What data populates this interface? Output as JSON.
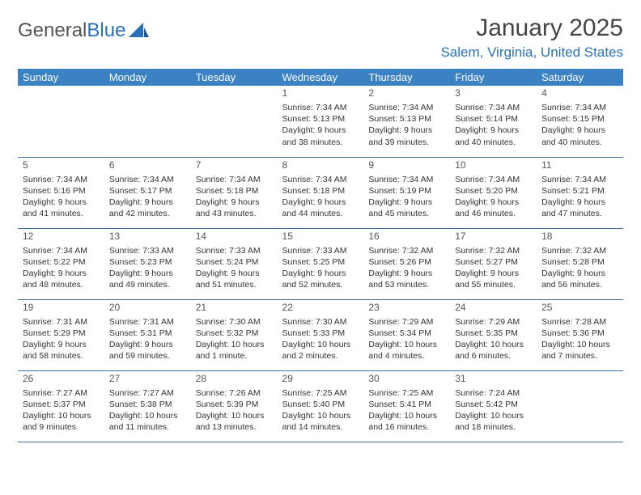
{
  "brand": {
    "part1": "General",
    "part2": "Blue"
  },
  "title": "January 2025",
  "location": "Salem, Virginia, United States",
  "colors": {
    "header_bg": "#3b82c4",
    "header_text": "#ffffff",
    "daynum_bg": "#eceden",
    "border": "#3b6fa3",
    "brand_blue": "#2a71b8",
    "text": "#333333",
    "page_bg": "#ffffff"
  },
  "weekdays": [
    "Sunday",
    "Monday",
    "Tuesday",
    "Wednesday",
    "Thursday",
    "Friday",
    "Saturday"
  ],
  "weeks": [
    [
      {
        "n": "",
        "t": ""
      },
      {
        "n": "",
        "t": ""
      },
      {
        "n": "",
        "t": ""
      },
      {
        "n": "1",
        "t": "Sunrise: 7:34 AM\nSunset: 5:13 PM\nDaylight: 9 hours and 38 minutes."
      },
      {
        "n": "2",
        "t": "Sunrise: 7:34 AM\nSunset: 5:13 PM\nDaylight: 9 hours and 39 minutes."
      },
      {
        "n": "3",
        "t": "Sunrise: 7:34 AM\nSunset: 5:14 PM\nDaylight: 9 hours and 40 minutes."
      },
      {
        "n": "4",
        "t": "Sunrise: 7:34 AM\nSunset: 5:15 PM\nDaylight: 9 hours and 40 minutes."
      }
    ],
    [
      {
        "n": "5",
        "t": "Sunrise: 7:34 AM\nSunset: 5:16 PM\nDaylight: 9 hours and 41 minutes."
      },
      {
        "n": "6",
        "t": "Sunrise: 7:34 AM\nSunset: 5:17 PM\nDaylight: 9 hours and 42 minutes."
      },
      {
        "n": "7",
        "t": "Sunrise: 7:34 AM\nSunset: 5:18 PM\nDaylight: 9 hours and 43 minutes."
      },
      {
        "n": "8",
        "t": "Sunrise: 7:34 AM\nSunset: 5:18 PM\nDaylight: 9 hours and 44 minutes."
      },
      {
        "n": "9",
        "t": "Sunrise: 7:34 AM\nSunset: 5:19 PM\nDaylight: 9 hours and 45 minutes."
      },
      {
        "n": "10",
        "t": "Sunrise: 7:34 AM\nSunset: 5:20 PM\nDaylight: 9 hours and 46 minutes."
      },
      {
        "n": "11",
        "t": "Sunrise: 7:34 AM\nSunset: 5:21 PM\nDaylight: 9 hours and 47 minutes."
      }
    ],
    [
      {
        "n": "12",
        "t": "Sunrise: 7:34 AM\nSunset: 5:22 PM\nDaylight: 9 hours and 48 minutes."
      },
      {
        "n": "13",
        "t": "Sunrise: 7:33 AM\nSunset: 5:23 PM\nDaylight: 9 hours and 49 minutes."
      },
      {
        "n": "14",
        "t": "Sunrise: 7:33 AM\nSunset: 5:24 PM\nDaylight: 9 hours and 51 minutes."
      },
      {
        "n": "15",
        "t": "Sunrise: 7:33 AM\nSunset: 5:25 PM\nDaylight: 9 hours and 52 minutes."
      },
      {
        "n": "16",
        "t": "Sunrise: 7:32 AM\nSunset: 5:26 PM\nDaylight: 9 hours and 53 minutes."
      },
      {
        "n": "17",
        "t": "Sunrise: 7:32 AM\nSunset: 5:27 PM\nDaylight: 9 hours and 55 minutes."
      },
      {
        "n": "18",
        "t": "Sunrise: 7:32 AM\nSunset: 5:28 PM\nDaylight: 9 hours and 56 minutes."
      }
    ],
    [
      {
        "n": "19",
        "t": "Sunrise: 7:31 AM\nSunset: 5:29 PM\nDaylight: 9 hours and 58 minutes."
      },
      {
        "n": "20",
        "t": "Sunrise: 7:31 AM\nSunset: 5:31 PM\nDaylight: 9 hours and 59 minutes."
      },
      {
        "n": "21",
        "t": "Sunrise: 7:30 AM\nSunset: 5:32 PM\nDaylight: 10 hours and 1 minute."
      },
      {
        "n": "22",
        "t": "Sunrise: 7:30 AM\nSunset: 5:33 PM\nDaylight: 10 hours and 2 minutes."
      },
      {
        "n": "23",
        "t": "Sunrise: 7:29 AM\nSunset: 5:34 PM\nDaylight: 10 hours and 4 minutes."
      },
      {
        "n": "24",
        "t": "Sunrise: 7:29 AM\nSunset: 5:35 PM\nDaylight: 10 hours and 6 minutes."
      },
      {
        "n": "25",
        "t": "Sunrise: 7:28 AM\nSunset: 5:36 PM\nDaylight: 10 hours and 7 minutes."
      }
    ],
    [
      {
        "n": "26",
        "t": "Sunrise: 7:27 AM\nSunset: 5:37 PM\nDaylight: 10 hours and 9 minutes."
      },
      {
        "n": "27",
        "t": "Sunrise: 7:27 AM\nSunset: 5:38 PM\nDaylight: 10 hours and 11 minutes."
      },
      {
        "n": "28",
        "t": "Sunrise: 7:26 AM\nSunset: 5:39 PM\nDaylight: 10 hours and 13 minutes."
      },
      {
        "n": "29",
        "t": "Sunrise: 7:25 AM\nSunset: 5:40 PM\nDaylight: 10 hours and 14 minutes."
      },
      {
        "n": "30",
        "t": "Sunrise: 7:25 AM\nSunset: 5:41 PM\nDaylight: 10 hours and 16 minutes."
      },
      {
        "n": "31",
        "t": "Sunrise: 7:24 AM\nSunset: 5:42 PM\nDaylight: 10 hours and 18 minutes."
      },
      {
        "n": "",
        "t": ""
      }
    ]
  ]
}
